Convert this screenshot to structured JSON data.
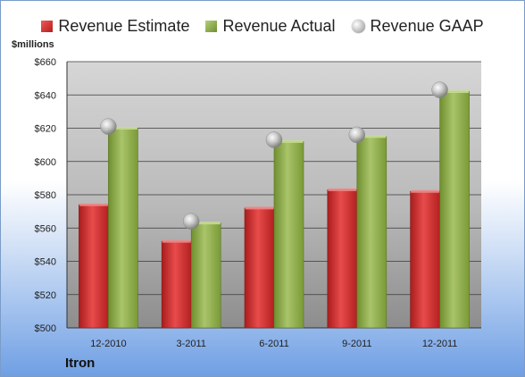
{
  "legend": {
    "estimate": "Revenue Estimate",
    "actual": "Revenue Actual",
    "gaap": "Revenue GAAP"
  },
  "unit_label": "$millions",
  "company": "Itron",
  "chart_data": {
    "type": "bar",
    "categories": [
      "12-2010",
      "3-2011",
      "6-2011",
      "9-2011",
      "12-2011"
    ],
    "series": [
      {
        "name": "Revenue Estimate",
        "kind": "bar",
        "color": "#c62828",
        "values": [
          574,
          552,
          572,
          583,
          582
        ]
      },
      {
        "name": "Revenue Actual",
        "kind": "bar",
        "color": "#8fae4a",
        "values": [
          620,
          563,
          612,
          615,
          642
        ]
      },
      {
        "name": "Revenue GAAP",
        "kind": "marker",
        "color": "#bdbdbd",
        "values": [
          621,
          564,
          613,
          616,
          643
        ]
      }
    ],
    "ylabel": "$millions",
    "ylim": [
      500,
      660
    ],
    "yticks": [
      500,
      520,
      540,
      560,
      580,
      600,
      620,
      640,
      660
    ],
    "ytick_labels": [
      "$500",
      "$520",
      "$540",
      "$560",
      "$580",
      "$600",
      "$620",
      "$640",
      "$660"
    ],
    "grid": true,
    "legend_position": "top"
  }
}
